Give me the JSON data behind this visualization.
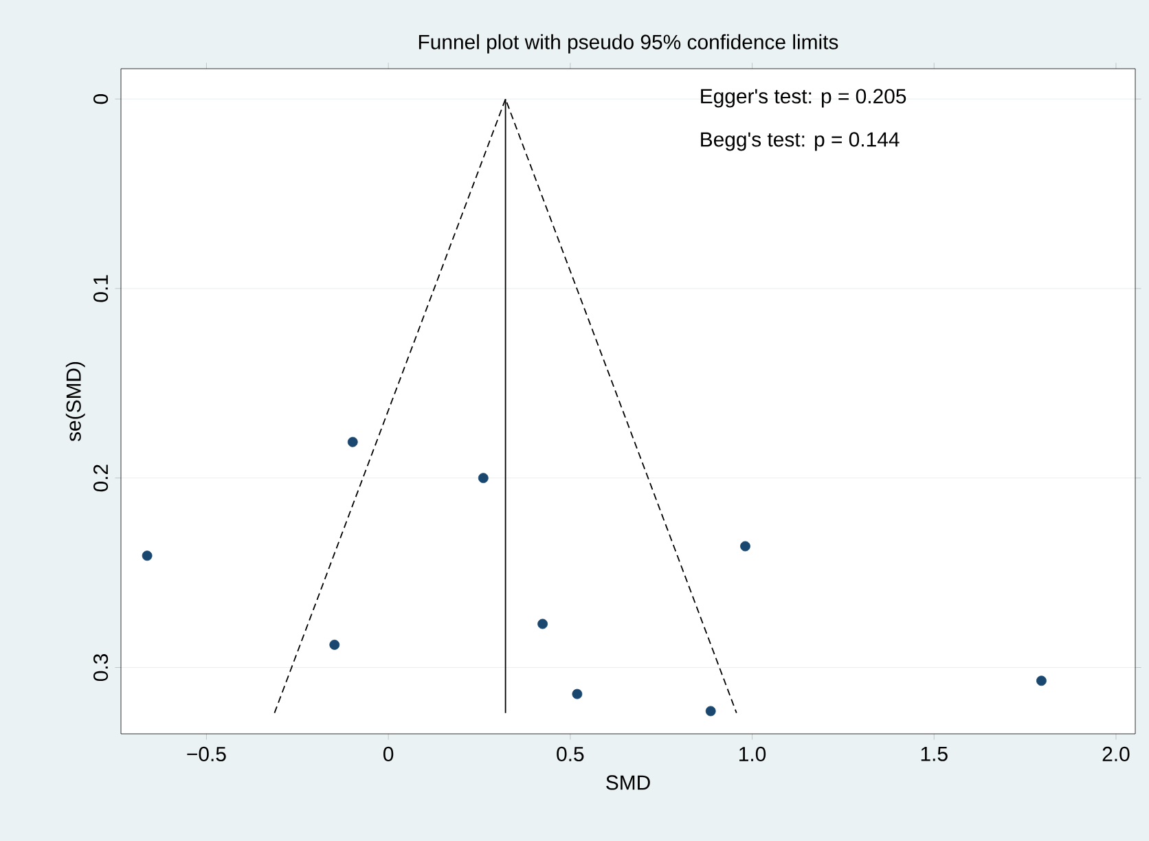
{
  "chart_data": {
    "type": "scatter",
    "title": "Funnel plot with pseudo 95% confidence limits",
    "xlabel": "SMD",
    "ylabel": "se(SMD)",
    "xlim": [
      -0.735,
      2.053
    ],
    "ylim": [
      0.335,
      -0.016
    ],
    "xticks": [
      {
        "value": -0.5,
        "label": "−0.5"
      },
      0,
      0.5,
      {
        "value": 1.0,
        "label": "1.0"
      },
      1.5,
      {
        "value": 2.0,
        "label": "2.0"
      }
    ],
    "yticks": [
      0,
      0.1,
      0.2,
      0.3
    ],
    "grid": "y",
    "series": [
      {
        "color": "#1a476f",
        "x": [
          -0.663,
          -0.098,
          -0.148,
          0.261,
          0.424,
          0.519,
          0.886,
          0.981,
          1.795
        ],
        "values": [
          0.241,
          0.181,
          0.288,
          0.2,
          0.277,
          0.314,
          0.323,
          0.236,
          0.307
        ]
      },
      {
        "type": "line",
        "color": "#000000",
        "line_style": "dashed",
        "x": [
          -0.313,
          0.322,
          0.957
        ],
        "values": [
          0.324,
          0,
          0.324
        ]
      },
      {
        "type": "line",
        "color": "#000000",
        "line_style": "solid",
        "x": [
          0.322,
          0.322
        ],
        "values": [
          0.324,
          0
        ]
      }
    ],
    "annotations": [
      "Egger's test: p = 0.205",
      "Begg's test: p = 0.144"
    ]
  }
}
